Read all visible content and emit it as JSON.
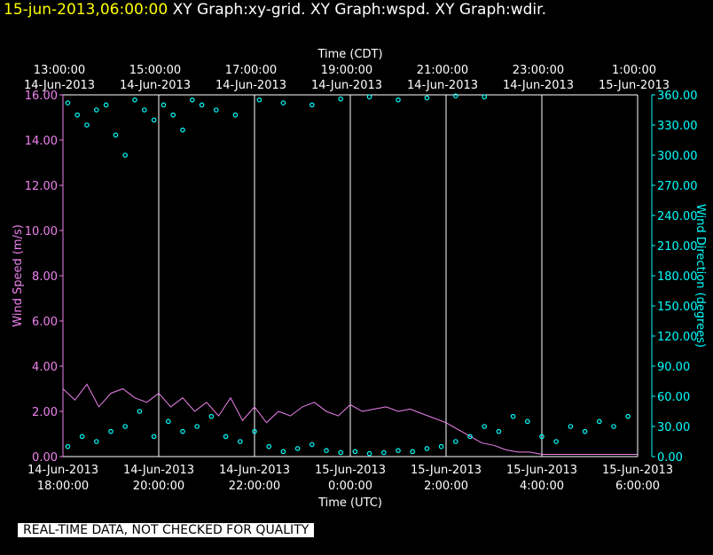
{
  "header": {
    "timestamp": "15-jun-2013,06:00:00",
    "graphs": "XY Graph:xy-grid.  XY Graph:wspd.  XY Graph:wdir."
  },
  "notice": "REAL-TIME DATA, NOT CHECKED FOR QUALITY",
  "colors": {
    "background": "#000000",
    "wind_speed": "#ee82ee",
    "wind_direction": "#00ffff",
    "grid": "#ffffff",
    "timestamp": "#ffff00"
  },
  "chart_data": {
    "type": "line",
    "grid": true,
    "top_axis": {
      "title": "Time (CDT)",
      "ticks": [
        {
          "time": "13:00:00",
          "date": "14-Jun-2013"
        },
        {
          "time": "15:00:00",
          "date": "14-Jun-2013"
        },
        {
          "time": "17:00:00",
          "date": "14-Jun-2013"
        },
        {
          "time": "19:00:00",
          "date": "14-Jun-2013"
        },
        {
          "time": "21:00:00",
          "date": "14-Jun-2013"
        },
        {
          "time": "23:00:00",
          "date": "14-Jun-2013"
        },
        {
          "time": "1:00:00",
          "date": "15-Jun-2013"
        }
      ]
    },
    "bottom_axis": {
      "title": "Time (UTC)",
      "range": [
        "14-Jun-2013 18:00:00",
        "15-Jun-2013 06:00:00"
      ],
      "ticks": [
        {
          "date": "14-Jun-2013",
          "time": "18:00:00"
        },
        {
          "date": "14-Jun-2013",
          "time": "20:00:00"
        },
        {
          "date": "14-Jun-2013",
          "time": "22:00:00"
        },
        {
          "date": "15-Jun-2013",
          "time": "0:00:00"
        },
        {
          "date": "15-Jun-2013",
          "time": "2:00:00"
        },
        {
          "date": "15-Jun-2013",
          "time": "4:00:00"
        },
        {
          "date": "15-Jun-2013",
          "time": "6:00:00"
        }
      ]
    },
    "left_axis": {
      "title": "Wind Speed (m/s)",
      "range": [
        0,
        16
      ],
      "ticks": [
        "0.00",
        "2.00",
        "4.00",
        "6.00",
        "8.00",
        "10.00",
        "12.00",
        "14.00",
        "16.00"
      ]
    },
    "right_axis": {
      "title": "Wind Direction (degrees)",
      "range": [
        0,
        360
      ],
      "ticks": [
        "0.00",
        "30.00",
        "60.00",
        "90.00",
        "120.00",
        "150.00",
        "180.00",
        "210.00",
        "240.00",
        "270.00",
        "300.00",
        "330.00",
        "360.00"
      ]
    },
    "wind_speed": {
      "style": "line",
      "hours_utc_from_1800": [
        0,
        0.25,
        0.5,
        0.75,
        1,
        1.25,
        1.5,
        1.75,
        2,
        2.25,
        2.5,
        2.75,
        3,
        3.25,
        3.5,
        3.75,
        4,
        4.25,
        4.5,
        4.75,
        5,
        5.25,
        5.5,
        5.75,
        6,
        6.25,
        6.5,
        6.75,
        7,
        7.25,
        7.5,
        7.75,
        8,
        8.25,
        8.5,
        8.75,
        9,
        9.25,
        9.5,
        9.75,
        10,
        10.25,
        10.5,
        10.75,
        11,
        11.25,
        11.5,
        11.75,
        12
      ],
      "values": [
        3.0,
        2.5,
        3.2,
        2.2,
        2.8,
        3.0,
        2.6,
        2.4,
        2.8,
        2.2,
        2.6,
        2.0,
        2.4,
        1.8,
        2.6,
        1.6,
        2.2,
        1.5,
        2.0,
        1.8,
        2.2,
        2.4,
        2.0,
        1.8,
        2.3,
        2.0,
        2.1,
        2.2,
        2.0,
        2.1,
        1.9,
        1.7,
        1.5,
        1.2,
        0.9,
        0.6,
        0.5,
        0.3,
        0.2,
        0.2,
        0.1,
        0.1,
        0.1,
        0.1,
        0.1,
        0.1,
        0.1,
        0.1,
        0.1
      ]
    },
    "wind_direction": {
      "style": "circles",
      "groups": [
        {
          "hours_utc_from_1800": [
            0.1,
            0.3,
            0.5,
            0.7,
            0.9,
            1.1,
            1.3,
            1.5,
            1.7,
            1.9,
            2.1,
            2.3,
            2.5,
            2.7,
            2.9,
            3.2,
            3.6,
            4.1,
            4.6,
            5.2,
            5.8,
            6.4,
            7.0,
            7.6,
            8.2,
            8.8
          ],
          "values": [
            352,
            340,
            330,
            345,
            350,
            320,
            300,
            355,
            345,
            335,
            350,
            340,
            325,
            355,
            350,
            345,
            340,
            355,
            352,
            350,
            356,
            358,
            355,
            357,
            359,
            358
          ]
        },
        {
          "hours_utc_from_1800": [
            0.1,
            0.4,
            0.7,
            1.0,
            1.3,
            1.6,
            1.9,
            2.2,
            2.5,
            2.8,
            3.1,
            3.4,
            3.7,
            4.0,
            4.3,
            4.6,
            4.9,
            5.2,
            5.5,
            5.8,
            6.1,
            6.4,
            6.7,
            7.0,
            7.3,
            7.6,
            7.9,
            8.2,
            8.5,
            8.8,
            9.1,
            9.4,
            9.7,
            10.0,
            10.3,
            10.6,
            10.9,
            11.2,
            11.5,
            11.8
          ],
          "values": [
            10,
            20,
            15,
            25,
            30,
            45,
            20,
            35,
            25,
            30,
            40,
            20,
            15,
            25,
            10,
            5,
            8,
            12,
            6,
            4,
            5,
            3,
            4,
            6,
            5,
            8,
            10,
            15,
            20,
            30,
            25,
            40,
            35,
            20,
            15,
            30,
            25,
            35,
            30,
            40
          ]
        }
      ]
    }
  }
}
